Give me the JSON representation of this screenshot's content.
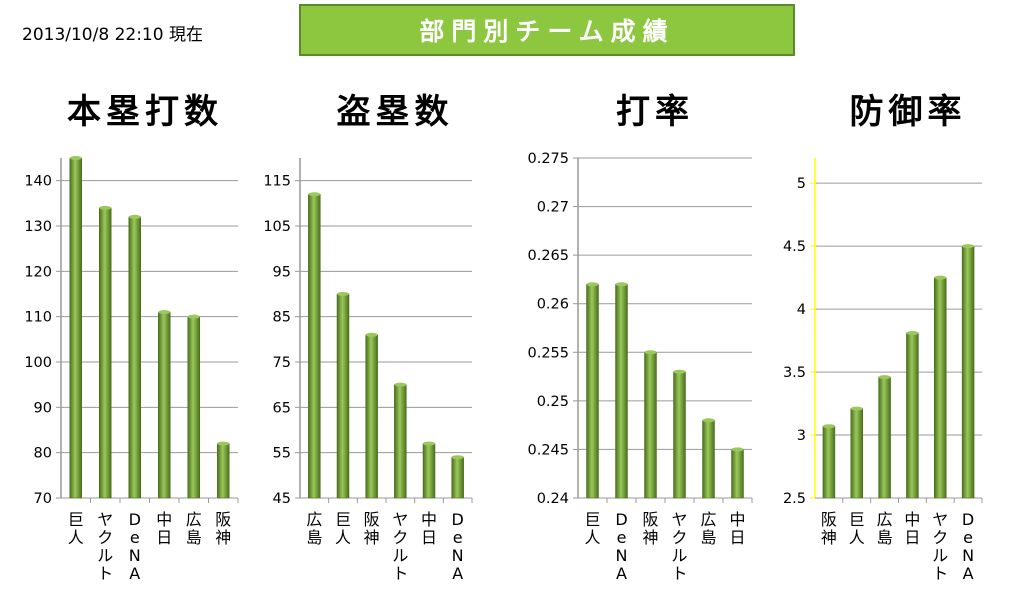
{
  "header": {
    "timestamp": "2013/10/8 22:10 現在",
    "banner_title": "部門別チーム成績"
  },
  "colors": {
    "bar_light": "#9bc85a",
    "bar_dark": "#4a6f1c",
    "banner": "#8dc63f",
    "axis": "#999999",
    "era_axis": "#ffff00"
  },
  "chart_data": [
    {
      "type": "bar",
      "title": "本塁打数",
      "categories": [
        "巨人",
        "ヤクルト",
        "DeNA",
        "中日",
        "広島",
        "阪神"
      ],
      "values": [
        145,
        134,
        132,
        111,
        110,
        82
      ],
      "ylim": [
        70,
        145
      ],
      "yticks": [
        70,
        80,
        90,
        100,
        110,
        120,
        130,
        140
      ],
      "tick_labels": [
        "70",
        "80",
        "90",
        "100",
        "110",
        "120",
        "130",
        "140"
      ],
      "grid": true
    },
    {
      "type": "bar",
      "title": "盗塁数",
      "categories": [
        "広島",
        "巨人",
        "阪神",
        "ヤクルト",
        "中日",
        "DeNA"
      ],
      "values": [
        112,
        90,
        81,
        70,
        57,
        54
      ],
      "ylim": [
        45,
        120
      ],
      "yticks": [
        45,
        55,
        65,
        75,
        85,
        95,
        105,
        115
      ],
      "tick_labels": [
        "45",
        "55",
        "65",
        "75",
        "85",
        "95",
        "105",
        "115"
      ],
      "grid": true
    },
    {
      "type": "bar",
      "title": "打率",
      "categories": [
        "巨人",
        "DeNA",
        "阪神",
        "ヤクルト",
        "広島",
        "中日"
      ],
      "values": [
        0.262,
        0.262,
        0.255,
        0.253,
        0.248,
        0.245
      ],
      "ylim": [
        0.24,
        0.275
      ],
      "yticks": [
        0.24,
        0.245,
        0.25,
        0.255,
        0.26,
        0.265,
        0.27,
        0.275
      ],
      "tick_labels": [
        "0.24",
        "0.245",
        "0.25",
        "0.255",
        "0.26",
        "0.265",
        "0.27",
        "0.275"
      ],
      "grid": true
    },
    {
      "type": "bar",
      "title": "防御率",
      "categories": [
        "阪神",
        "巨人",
        "広島",
        "中日",
        "ヤクルト",
        "DeNA"
      ],
      "values": [
        3.07,
        3.21,
        3.46,
        3.81,
        4.25,
        4.5
      ],
      "ylim": [
        2.5,
        5.2
      ],
      "yticks": [
        2.5,
        3,
        3.5,
        4,
        4.5,
        5
      ],
      "tick_labels": [
        "2.5",
        "3",
        "3.5",
        "4",
        "4.5",
        "5"
      ],
      "grid": true
    }
  ]
}
